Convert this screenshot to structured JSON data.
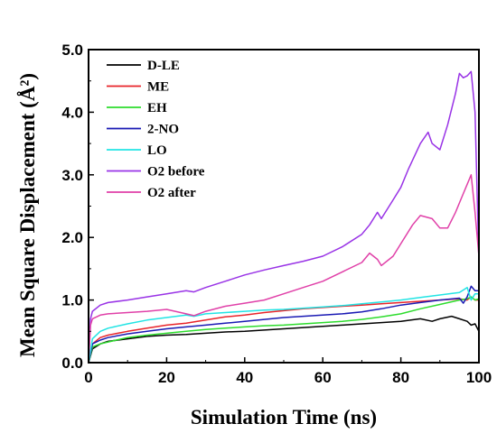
{
  "chart_data": {
    "type": "line",
    "xlabel": "Simulation Time (ns)",
    "ylabel": "Mean Square Displacement (Å²)",
    "xlim": [
      0,
      100
    ],
    "ylim": [
      0,
      5.0
    ],
    "xticks": [
      0,
      20,
      40,
      60,
      80,
      100
    ],
    "yticks": [
      0.0,
      1.0,
      2.0,
      3.0,
      4.0,
      5.0
    ],
    "xtick_labels": [
      "0",
      "20",
      "40",
      "60",
      "80",
      "100"
    ],
    "ytick_labels": [
      "0.0",
      "1.0",
      "2.0",
      "3.0",
      "4.0",
      "5.0"
    ],
    "grid": false,
    "legend_position": "top-left",
    "series": [
      {
        "name": "D-LE",
        "color": "#000000",
        "x": [
          0,
          1,
          3,
          5,
          10,
          15,
          20,
          25,
          30,
          35,
          40,
          45,
          50,
          55,
          60,
          65,
          70,
          75,
          80,
          85,
          88,
          90,
          93,
          95,
          97,
          98,
          99,
          100
        ],
        "y": [
          0.0,
          0.22,
          0.3,
          0.34,
          0.38,
          0.42,
          0.44,
          0.45,
          0.47,
          0.49,
          0.5,
          0.52,
          0.54,
          0.56,
          0.58,
          0.6,
          0.62,
          0.64,
          0.66,
          0.7,
          0.66,
          0.7,
          0.74,
          0.7,
          0.66,
          0.6,
          0.62,
          0.5
        ]
      },
      {
        "name": "ME",
        "color": "#e8242a",
        "x": [
          0,
          1,
          3,
          5,
          10,
          15,
          20,
          25,
          30,
          35,
          40,
          45,
          50,
          55,
          60,
          65,
          70,
          75,
          80,
          85,
          90,
          95,
          97,
          98,
          99,
          100
        ],
        "y": [
          0.0,
          0.3,
          0.4,
          0.44,
          0.5,
          0.55,
          0.6,
          0.63,
          0.68,
          0.73,
          0.76,
          0.8,
          0.83,
          0.86,
          0.88,
          0.9,
          0.92,
          0.94,
          0.96,
          0.98,
          1.0,
          1.02,
          1.0,
          1.05,
          1.0,
          1.0
        ]
      },
      {
        "name": "EH",
        "color": "#2ddc2d",
        "x": [
          0,
          1,
          3,
          5,
          10,
          15,
          20,
          25,
          30,
          35,
          40,
          45,
          50,
          55,
          60,
          65,
          70,
          75,
          80,
          85,
          90,
          95,
          97,
          98,
          99,
          100
        ],
        "y": [
          0.0,
          0.25,
          0.3,
          0.33,
          0.4,
          0.44,
          0.47,
          0.5,
          0.53,
          0.55,
          0.57,
          0.59,
          0.6,
          0.62,
          0.64,
          0.66,
          0.69,
          0.73,
          0.78,
          0.86,
          0.93,
          1.0,
          1.02,
          1.05,
          1.0,
          1.02
        ]
      },
      {
        "name": "2-NO",
        "color": "#1a1ab4",
        "x": [
          0,
          1,
          3,
          5,
          10,
          15,
          20,
          25,
          30,
          35,
          40,
          45,
          50,
          55,
          60,
          65,
          70,
          75,
          80,
          85,
          90,
          95,
          96,
          97,
          98,
          99,
          100
        ],
        "y": [
          0.0,
          0.3,
          0.36,
          0.4,
          0.46,
          0.5,
          0.54,
          0.57,
          0.6,
          0.63,
          0.66,
          0.69,
          0.72,
          0.74,
          0.76,
          0.78,
          0.81,
          0.86,
          0.92,
          0.96,
          1.0,
          1.03,
          0.95,
          1.05,
          1.22,
          1.15,
          1.15
        ]
      },
      {
        "name": "LO",
        "color": "#22e4e4",
        "x": [
          0,
          1,
          3,
          5,
          10,
          15,
          20,
          25,
          27,
          30,
          35,
          40,
          45,
          50,
          55,
          60,
          65,
          70,
          75,
          80,
          85,
          90,
          95,
          97,
          98,
          99,
          100
        ],
        "y": [
          0.0,
          0.38,
          0.5,
          0.55,
          0.62,
          0.68,
          0.72,
          0.76,
          0.74,
          0.78,
          0.8,
          0.82,
          0.84,
          0.85,
          0.87,
          0.89,
          0.91,
          0.94,
          0.97,
          1.0,
          1.04,
          1.08,
          1.12,
          1.2,
          1.0,
          1.1,
          1.1
        ]
      },
      {
        "name": "O2 before",
        "color": "#9933e6",
        "x": [
          0,
          0.5,
          1,
          3,
          5,
          10,
          15,
          20,
          25,
          27,
          30,
          35,
          40,
          45,
          50,
          55,
          60,
          65,
          70,
          72,
          74,
          75,
          78,
          80,
          82,
          85,
          87,
          88,
          90,
          92,
          94,
          95,
          96,
          97,
          98,
          99,
          100
        ],
        "y": [
          0.0,
          0.7,
          0.82,
          0.92,
          0.96,
          1.0,
          1.05,
          1.1,
          1.15,
          1.13,
          1.2,
          1.3,
          1.4,
          1.48,
          1.55,
          1.62,
          1.7,
          1.85,
          2.05,
          2.2,
          2.4,
          2.3,
          2.6,
          2.8,
          3.1,
          3.5,
          3.68,
          3.5,
          3.4,
          3.8,
          4.3,
          4.62,
          4.55,
          4.58,
          4.65,
          4.0,
          1.6
        ]
      },
      {
        "name": "O2 after",
        "color": "#e040a8",
        "x": [
          0,
          0.5,
          1,
          3,
          5,
          10,
          15,
          20,
          25,
          27,
          30,
          35,
          40,
          45,
          50,
          55,
          60,
          65,
          70,
          72,
          74,
          75,
          78,
          80,
          83,
          85,
          88,
          90,
          92,
          94,
          96,
          98,
          99,
          100
        ],
        "y": [
          0.0,
          0.6,
          0.7,
          0.76,
          0.78,
          0.8,
          0.82,
          0.85,
          0.78,
          0.75,
          0.82,
          0.9,
          0.95,
          1.0,
          1.1,
          1.2,
          1.3,
          1.45,
          1.6,
          1.75,
          1.65,
          1.55,
          1.7,
          1.9,
          2.2,
          2.35,
          2.3,
          2.15,
          2.15,
          2.4,
          2.7,
          3.0,
          2.4,
          1.7
        ]
      }
    ]
  }
}
